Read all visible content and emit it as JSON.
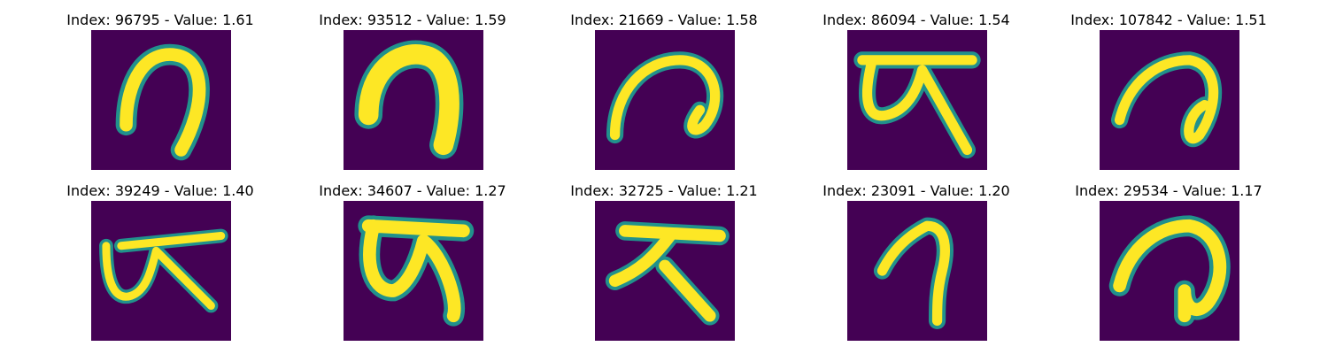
{
  "colormap": {
    "background": "#440154",
    "mid": "#21918c",
    "high": "#fde725"
  },
  "panels": [
    {
      "title": "Index: 96795 - Value: 1.61",
      "glyph": "hook-arch"
    },
    {
      "title": "Index: 93512 - Value: 1.59",
      "glyph": "thick-arch"
    },
    {
      "title": "Index: 21669 - Value: 1.58",
      "glyph": "curl"
    },
    {
      "title": "Index: 86094 - Value: 1.54",
      "glyph": "bar-loop"
    },
    {
      "title": "Index: 107842 - Value: 1.51",
      "glyph": "curl-loop"
    },
    {
      "title": "Index: 39249 - Value: 1.40",
      "glyph": "bar-loop"
    },
    {
      "title": "Index: 34607 - Value: 1.27",
      "glyph": "bar-loop"
    },
    {
      "title": "Index: 32725 - Value: 1.21",
      "glyph": "bar-legs"
    },
    {
      "title": "Index: 23091 - Value: 1.20",
      "glyph": "hook-arch"
    },
    {
      "title": "Index: 29534 - Value: 1.17",
      "glyph": "round-curl"
    }
  ]
}
